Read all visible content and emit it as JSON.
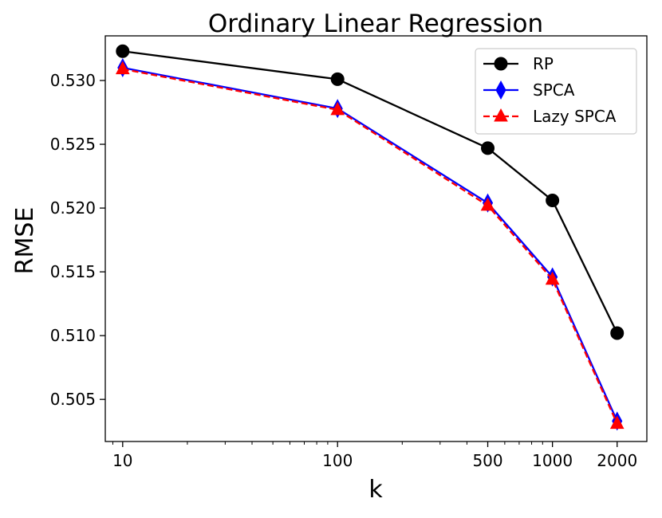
{
  "chart_data": {
    "type": "line",
    "title": "Ordinary Linear Regression",
    "xlabel": "k",
    "ylabel": "RMSE",
    "xscale": "log",
    "x": [
      10,
      100,
      500,
      1000,
      2000
    ],
    "xticks": [
      "10",
      "100",
      "500",
      "1000",
      "2000"
    ],
    "xlim": [
      8.3,
      2750
    ],
    "ylim": [
      0.5017,
      0.5335
    ],
    "yticks": [
      "0.505",
      "0.510",
      "0.515",
      "0.520",
      "0.525",
      "0.530"
    ],
    "grid": false,
    "legend_position": "top-right",
    "series": [
      {
        "name": "RP",
        "color": "#000000",
        "line_style": "solid",
        "marker": "circle",
        "values": [
          0.5323,
          0.5301,
          0.5247,
          0.5206,
          0.5102
        ]
      },
      {
        "name": "SPCA",
        "color": "#0000ff",
        "line_style": "solid",
        "marker": "diamond",
        "values": [
          0.531,
          0.5278,
          0.5204,
          0.5146,
          0.5033
        ]
      },
      {
        "name": "Lazy SPCA",
        "color": "#ff0000",
        "line_style": "dashed",
        "marker": "triangle",
        "values": [
          0.5309,
          0.5277,
          0.5202,
          0.5144,
          0.5031
        ]
      }
    ]
  }
}
